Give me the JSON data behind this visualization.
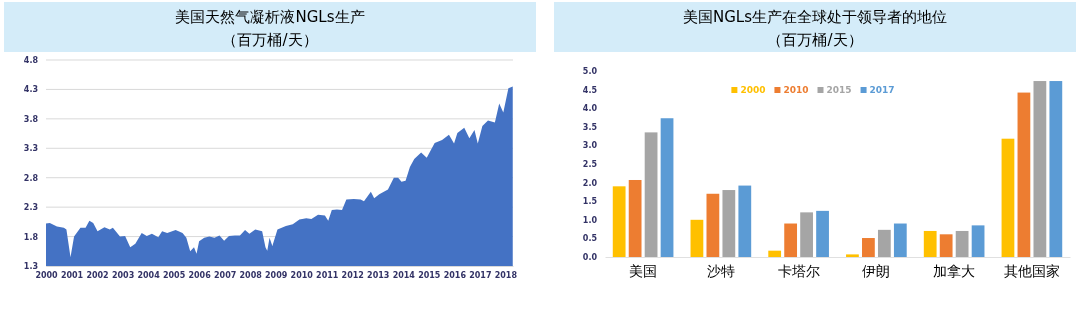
{
  "chart_data": [
    {
      "type": "area",
      "title": "美国天然气凝析液NGLs生产",
      "subtitle": "（百万桶/天）",
      "color": "#4472c4",
      "grid": "y",
      "x": [
        2000.0,
        2000.15,
        2000.43,
        2000.7,
        2000.8,
        2000.96,
        2001.1,
        2001.35,
        2001.55,
        2001.7,
        2001.85,
        2002.02,
        2002.29,
        2002.5,
        2002.62,
        2002.9,
        2003.1,
        2003.3,
        2003.5,
        2003.75,
        2003.95,
        2004.15,
        2004.4,
        2004.55,
        2004.75,
        2005.08,
        2005.35,
        2005.5,
        2005.65,
        2005.8,
        2005.9,
        2006.0,
        2006.2,
        2006.4,
        2006.6,
        2006.8,
        2006.98,
        2007.17,
        2007.4,
        2007.6,
        2007.8,
        2007.97,
        2008.2,
        2008.47,
        2008.6,
        2008.67,
        2008.76,
        2008.87,
        2009.07,
        2009.4,
        2009.67,
        2009.93,
        2010.2,
        2010.4,
        2010.66,
        2010.93,
        2011.06,
        2011.2,
        2011.4,
        2011.6,
        2011.77,
        2012.06,
        2012.33,
        2012.46,
        2012.73,
        2012.86,
        2013.06,
        2013.4,
        2013.63,
        2013.8,
        2013.93,
        2014.09,
        2014.26,
        2014.43,
        2014.7,
        2014.92,
        2015.23,
        2015.52,
        2015.79,
        2015.99,
        2016.12,
        2016.39,
        2016.59,
        2016.79,
        2016.92,
        2017.1,
        2017.32,
        2017.59,
        2017.76,
        2017.92,
        2018.12,
        2018.29
      ],
      "values": [
        2.02,
        2.03,
        1.97,
        1.95,
        1.92,
        1.45,
        1.8,
        1.95,
        1.95,
        2.07,
        2.03,
        1.89,
        1.96,
        1.92,
        1.95,
        1.8,
        1.81,
        1.62,
        1.68,
        1.86,
        1.81,
        1.85,
        1.79,
        1.89,
        1.86,
        1.91,
        1.86,
        1.78,
        1.55,
        1.62,
        1.51,
        1.72,
        1.78,
        1.8,
        1.78,
        1.82,
        1.73,
        1.81,
        1.82,
        1.82,
        1.91,
        1.85,
        1.92,
        1.89,
        1.62,
        1.56,
        1.78,
        1.64,
        1.92,
        1.98,
        2.01,
        2.09,
        2.11,
        2.1,
        2.17,
        2.16,
        2.07,
        2.25,
        2.26,
        2.25,
        2.43,
        2.44,
        2.43,
        2.4,
        2.56,
        2.45,
        2.52,
        2.6,
        2.8,
        2.8,
        2.73,
        2.75,
        2.98,
        3.12,
        3.23,
        3.14,
        3.39,
        3.44,
        3.53,
        3.38,
        3.56,
        3.65,
        3.47,
        3.61,
        3.38,
        3.68,
        3.77,
        3.74,
        4.06,
        3.91,
        4.32,
        4.35
      ],
      "xlim": [
        2000,
        2018.3
      ],
      "xticks": [
        2000,
        2001,
        2002,
        2003,
        2004,
        2005,
        2006,
        2007,
        2008,
        2009,
        2010,
        2011,
        2012,
        2013,
        2014,
        2015,
        2016,
        2017,
        2018
      ],
      "ylim": [
        1.3,
        4.8
      ],
      "yticks": [
        {
          "value": 1.3,
          "label": "1.3"
        },
        {
          "value": 1.8,
          "label": "1.8"
        },
        {
          "value": 2.3,
          "label": "2.3"
        },
        {
          "value": 2.8,
          "label": "2.8"
        },
        {
          "value": 3.3,
          "label": "3.3"
        },
        {
          "value": 3.8,
          "label": "3.8"
        },
        {
          "value": 4.3,
          "label": "4.3"
        },
        {
          "value": 4.8,
          "label": "4.8"
        }
      ]
    },
    {
      "type": "bar",
      "title": "美国NGLs生产在全球处于领导者的地位",
      "subtitle": "（百万桶/天）",
      "legend": "top",
      "categories": [
        "美国",
        "沙特",
        "卡塔尔",
        "伊朗",
        "加拿大",
        "其他国家"
      ],
      "series": [
        {
          "name": "2000",
          "color": "#ffc000",
          "values": [
            1.9,
            1.0,
            0.17,
            0.07,
            0.7,
            3.18
          ]
        },
        {
          "name": "2010",
          "color": "#ed7d31",
          "values": [
            2.07,
            1.7,
            0.9,
            0.51,
            0.61,
            4.42
          ]
        },
        {
          "name": "2015",
          "color": "#a5a5a5",
          "values": [
            3.35,
            1.8,
            1.2,
            0.73,
            0.7,
            4.73
          ]
        },
        {
          "name": "2017",
          "color": "#5b9bd5",
          "values": [
            3.73,
            1.92,
            1.24,
            0.9,
            0.85,
            4.73
          ]
        }
      ],
      "ylim": [
        0,
        5
      ],
      "yticks": [
        {
          "value": 0,
          "label": "0.0"
        },
        {
          "value": 0.5,
          "label": "0.5"
        },
        {
          "value": 1,
          "label": "1.0"
        },
        {
          "value": 1.5,
          "label": "1.5"
        },
        {
          "value": 2,
          "label": "2.0"
        },
        {
          "value": 2.5,
          "label": "2.5"
        },
        {
          "value": 3,
          "label": "3.0"
        },
        {
          "value": 3.5,
          "label": "3.5"
        },
        {
          "value": 4,
          "label": "4.0"
        },
        {
          "value": 4.5,
          "label": "4.5"
        },
        {
          "value": 5,
          "label": "5.0"
        }
      ]
    }
  ]
}
